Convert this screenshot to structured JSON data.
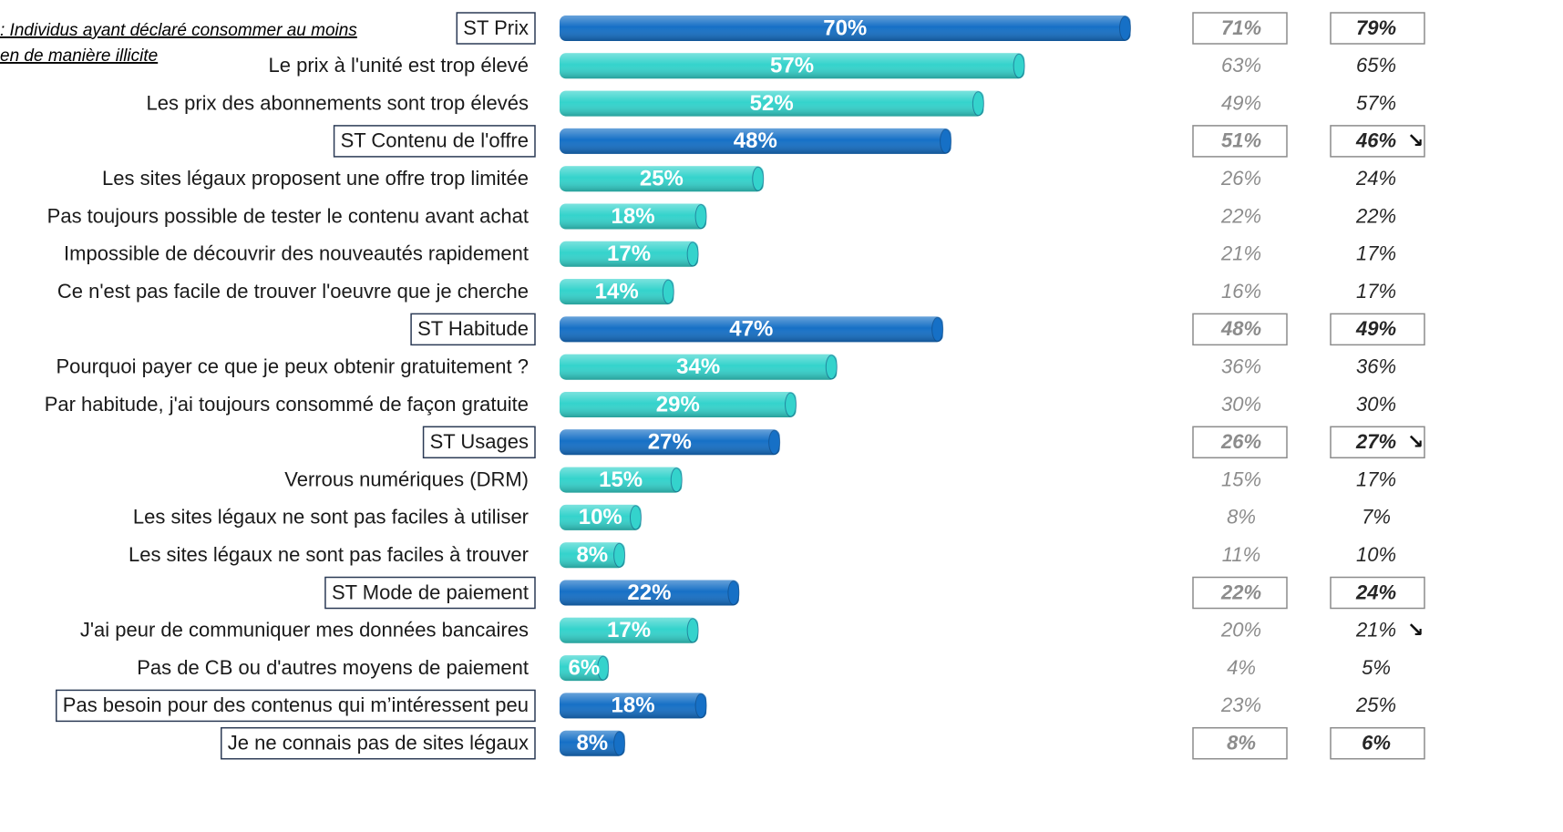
{
  "chart_data": {
    "type": "bar",
    "note": [
      ": Individus ayant déclaré consommer au moins",
      "en de manière illicite"
    ],
    "categories": [
      "ST Prix",
      "Le prix à l'unité est trop élevé",
      "Les prix des abonnements sont trop élevés",
      "ST Contenu de l'offre",
      "Les sites légaux proposent une offre trop limitée",
      "Pas toujours possible de tester le contenu avant achat",
      "Impossible de découvrir des nouveautés rapidement",
      "Ce n'est pas facile de trouver l'oeuvre que je cherche",
      "ST Habitude",
      "Pourquoi payer ce que je peux obtenir gratuitement ?",
      "Par habitude, j'ai toujours consommé de façon gratuite",
      "ST Usages",
      "Verrous numériques (DRM)",
      "Les sites légaux ne sont pas faciles à utiliser",
      "Les sites légaux ne sont pas faciles à trouver",
      "ST Mode de paiement",
      "J'ai peur de communiquer mes données bancaires",
      "Pas de CB ou d'autres moyens de paiement",
      "Pas besoin pour des contenus qui m’intéressent peu",
      "Je ne connais pas de sites légaux"
    ],
    "values": [
      70,
      57,
      52,
      48,
      25,
      18,
      17,
      14,
      47,
      34,
      29,
      27,
      15,
      10,
      8,
      22,
      17,
      6,
      18,
      8
    ],
    "value_labels": [
      "70%",
      "57%",
      "52%",
      "48%",
      "25%",
      "18%",
      "17%",
      "14%",
      "47%",
      "34%",
      "29%",
      "27%",
      "15%",
      "10%",
      "8%",
      "22%",
      "17%",
      "6%",
      "18%",
      "8%"
    ],
    "colors": [
      "#1670c6",
      "#34d3cc",
      "#34d3cc",
      "#1670c6",
      "#34d3cc",
      "#34d3cc",
      "#34d3cc",
      "#34d3cc",
      "#1670c6",
      "#34d3cc",
      "#34d3cc",
      "#1670c6",
      "#34d3cc",
      "#34d3cc",
      "#34d3cc",
      "#1670c6",
      "#34d3cc",
      "#34d3cc",
      "#1670c6",
      "#1670c6"
    ],
    "boxed_labels": [
      true,
      false,
      false,
      true,
      false,
      false,
      false,
      false,
      true,
      false,
      false,
      true,
      false,
      false,
      false,
      true,
      false,
      false,
      true,
      true
    ],
    "xlim": [
      0,
      100
    ],
    "comparisons": [
      {
        "color": "#8c8c8c",
        "values": [
          71,
          63,
          49,
          51,
          26,
          22,
          21,
          16,
          48,
          36,
          30,
          26,
          15,
          8,
          11,
          22,
          20,
          4,
          23,
          8
        ],
        "value_labels": [
          "71%",
          "63%",
          "49%",
          "51%",
          "26%",
          "22%",
          "21%",
          "16%",
          "48%",
          "36%",
          "30%",
          "26%",
          "15%",
          "8%",
          "11%",
          "22%",
          "20%",
          "4%",
          "23%",
          "8%"
        ],
        "boxed": [
          true,
          false,
          false,
          true,
          false,
          false,
          false,
          false,
          true,
          false,
          false,
          true,
          false,
          false,
          false,
          true,
          false,
          false,
          false,
          true
        ],
        "arrows": [
          null,
          null,
          null,
          null,
          null,
          null,
          null,
          null,
          null,
          null,
          null,
          null,
          null,
          null,
          null,
          null,
          null,
          null,
          null,
          null
        ]
      },
      {
        "color": "#262626",
        "values": [
          79,
          65,
          57,
          46,
          24,
          22,
          17,
          17,
          49,
          36,
          30,
          27,
          17,
          7,
          10,
          24,
          21,
          5,
          25,
          6
        ],
        "value_labels": [
          "79%",
          "65%",
          "57%",
          "46%",
          "24%",
          "22%",
          "17%",
          "17%",
          "49%",
          "36%",
          "30%",
          "27%",
          "17%",
          "7%",
          "10%",
          "24%",
          "21%",
          "5%",
          "25%",
          "6%"
        ],
        "boxed": [
          true,
          false,
          false,
          true,
          false,
          false,
          false,
          false,
          true,
          false,
          false,
          true,
          false,
          false,
          false,
          true,
          false,
          false,
          false,
          true
        ],
        "arrows": [
          null,
          null,
          null,
          "↘",
          null,
          null,
          null,
          null,
          null,
          null,
          null,
          "↘",
          null,
          null,
          null,
          null,
          "↘",
          null,
          null,
          null
        ]
      }
    ]
  }
}
